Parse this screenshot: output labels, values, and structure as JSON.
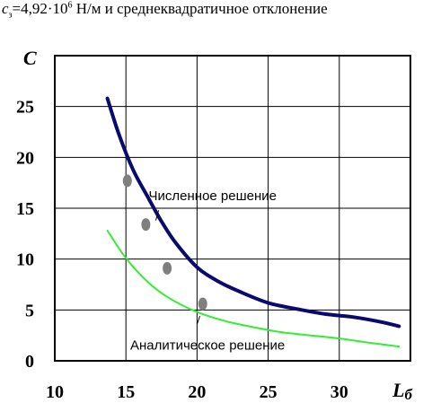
{
  "caption": {
    "symbol": "c",
    "subscript": "з",
    "equals_value": "=4,92·10",
    "exponent": "6",
    "rest": " Н/м и среднеквадратичное отклонение"
  },
  "chart_data": {
    "type": "line",
    "title": "",
    "ylabel": "C",
    "xlabel_main": "L",
    "xlabel_sub": "б",
    "xlim": [
      10,
      35
    ],
    "ylim": [
      0,
      30
    ],
    "x_ticks": [
      10,
      15,
      20,
      25,
      30
    ],
    "y_ticks": [
      0,
      5,
      10,
      15,
      20,
      25
    ],
    "grid": true,
    "series": [
      {
        "name": "Численное решение",
        "color": "#0a0a6e",
        "x": [
          13.7,
          14.5,
          15.5,
          16.5,
          17.5,
          18.5,
          20,
          21.5,
          23,
          25,
          27,
          29,
          31,
          33,
          34.2
        ],
        "y": [
          25.8,
          22.3,
          18.8,
          16.2,
          13.7,
          11.6,
          9.2,
          7.8,
          6.8,
          5.7,
          5.1,
          4.6,
          4.3,
          3.8,
          3.4
        ]
      },
      {
        "name": "Аналитическое решение",
        "color": "#33ee33",
        "x": [
          13.7,
          15,
          16.5,
          18,
          20,
          22,
          24,
          26,
          28,
          30,
          32,
          34.2
        ],
        "y": [
          12.8,
          10.1,
          7.8,
          6.2,
          4.8,
          3.9,
          3.3,
          2.8,
          2.5,
          2.2,
          1.8,
          1.4
        ]
      }
    ],
    "scatter": {
      "color": "#7f7f7f",
      "x": [
        15.1,
        16.4,
        17.9,
        20.4
      ],
      "y": [
        17.7,
        13.4,
        9.1,
        5.6
      ]
    },
    "annotations": [
      "Численное решение",
      "Аналитическое решение"
    ]
  }
}
